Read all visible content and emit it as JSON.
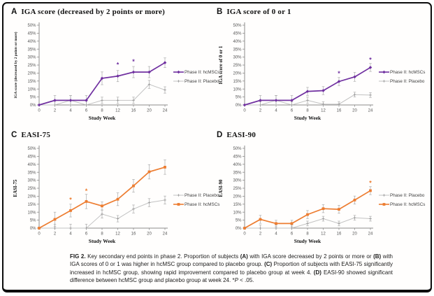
{
  "caption": {
    "fig_label": "FIG 2.",
    "t1": "  Key secondary end points in phase 2. Proportion of subjects ",
    "a": "(A)",
    "t2": " with IGA score decreased by 2 points or more or ",
    "b": "(B)",
    "t3": " with IGA scores of 0 or 1 was higher in hcMSC group compared to placebo group. ",
    "c": "(C)",
    "t4": " Proportion of subjects with EASI-75 significantly increased in hcMSC group, showing rapid improvement compared to placebo group at week 4. ",
    "d": "(D)",
    "t5": " EASI-90 showed significant difference between hcMSC group and placebo group at week 24. *",
    "p": "P",
    "t6": " < .05."
  },
  "chart_data": [
    {
      "type": "line",
      "letter": "A",
      "title": "IGA score (decreased by 2 points or more)",
      "ylabel": "IGA score (decreased by 2 points or more)",
      "xlabel": "Study Week",
      "x": [
        "0",
        "2",
        "4",
        "6",
        "8",
        "12",
        "16",
        "20",
        "24"
      ],
      "ylim": [
        0,
        50
      ],
      "y_step": 5,
      "y_tick_suffix": "%",
      "grid": "off",
      "legend_position": "right",
      "series": [
        {
          "name": "Phase II: hcMSCs",
          "color": "#7030A0",
          "marker": "diamond",
          "line_width": 1.7,
          "values": [
            0,
            2.9,
            2.9,
            2.9,
            16.7,
            18.1,
            20.6,
            20.6,
            26.5
          ],
          "err": [
            0,
            3,
            3,
            3,
            4,
            3.5,
            3.5,
            3.5,
            3
          ]
        },
        {
          "name": "Phase II: Placebo",
          "color": "#C2C2C2",
          "marker": "plus",
          "line_width": 1,
          "values": [
            0,
            0,
            2.9,
            0,
            2.9,
            2.9,
            2.9,
            12.9,
            9.4
          ],
          "err": [
            0,
            2.5,
            3,
            2.5,
            2,
            2,
            2,
            2.5,
            2
          ]
        }
      ],
      "legend_order": [
        0,
        1
      ],
      "asterisks": [
        {
          "week": "12",
          "y": 25
        },
        {
          "week": "16",
          "y": 27
        }
      ]
    },
    {
      "type": "line",
      "letter": "B",
      "title": "IGA score of 0 or 1",
      "ylabel": "IGA score of 0 or 1",
      "xlabel": "Study Week",
      "x": [
        "0",
        "2",
        "4",
        "6",
        "8",
        "12",
        "16",
        "20",
        "24"
      ],
      "ylim": [
        0,
        50
      ],
      "y_step": 5,
      "y_tick_suffix": "%",
      "grid": "off",
      "legend_position": "right",
      "series": [
        {
          "name": "Phase II: hcMSCs",
          "color": "#7030A0",
          "marker": "diamond",
          "line_width": 1.7,
          "values": [
            0,
            2.9,
            2.9,
            2.9,
            8.5,
            9.0,
            14.7,
            17.6,
            23.5
          ],
          "err": [
            0,
            3,
            3,
            3,
            2.5,
            2.5,
            2.5,
            2.8,
            2.5
          ]
        },
        {
          "name": "Phase II: Placebo",
          "color": "#C2C2C2",
          "marker": "plus",
          "line_width": 1,
          "values": [
            0,
            0,
            2.9,
            0,
            2.9,
            0.5,
            0.5,
            6.5,
            6.2
          ],
          "err": [
            0,
            2,
            3,
            2,
            2,
            1.5,
            1.5,
            1.5,
            1.5
          ]
        }
      ],
      "legend_order": [
        0,
        1
      ],
      "asterisks": [
        {
          "week": "16",
          "y": 19.5
        },
        {
          "week": "24",
          "y": 28
        }
      ]
    },
    {
      "type": "line",
      "letter": "C",
      "title": "EASI-75",
      "ylabel": "EASI-75",
      "xlabel": "Study Week",
      "x": [
        "0",
        "2",
        "4",
        "6",
        "8",
        "12",
        "16",
        "20",
        "24"
      ],
      "ylim": [
        0,
        50
      ],
      "y_step": 5,
      "y_tick_suffix": "%",
      "grid": "off",
      "legend_position": "right",
      "series": [
        {
          "name": "Phase II: hcMSCs",
          "color": "#ED7D31",
          "marker": "square",
          "line_width": 1.7,
          "values": [
            0,
            5.5,
            11.0,
            16.7,
            13.9,
            18.1,
            26.5,
            35.3,
            38.2
          ],
          "err": [
            0,
            4.5,
            4,
            4.5,
            2.5,
            4,
            4,
            4.5,
            4.5
          ]
        },
        {
          "name": "Phase II: Placebo",
          "color": "#C2C2C2",
          "marker": "plus",
          "line_width": 1,
          "values": [
            0,
            0,
            0,
            0,
            8.8,
            5.9,
            12.0,
            16.0,
            17.6
          ],
          "err": [
            0,
            2.5,
            2.5,
            2.5,
            2.5,
            2,
            2.5,
            2.5,
            2.5
          ]
        }
      ],
      "legend_order": [
        1,
        0
      ],
      "asterisks": [
        {
          "week": "4",
          "y": 17.5
        },
        {
          "week": "6",
          "y": 23
        }
      ]
    },
    {
      "type": "line",
      "letter": "D",
      "title": "EASI-90",
      "ylabel": "EASI-90",
      "xlabel": "Study Week",
      "x": [
        "0",
        "2",
        "4",
        "6",
        "8",
        "12",
        "16",
        "20",
        "24"
      ],
      "ylim": [
        0,
        50
      ],
      "y_step": 5,
      "y_tick_suffix": "%",
      "grid": "off",
      "legend_position": "right",
      "series": [
        {
          "name": "Phase II: hcMSCs",
          "color": "#ED7D31",
          "marker": "square",
          "line_width": 1.7,
          "values": [
            0,
            5.5,
            2.9,
            2.9,
            8.5,
            12.2,
            11.8,
            17.6,
            23.5
          ],
          "err": [
            0,
            2.5,
            2,
            2,
            2.5,
            2.5,
            2.5,
            2.5,
            2.5
          ]
        },
        {
          "name": "Phase II: Placebo",
          "color": "#C2C2C2",
          "marker": "plus",
          "line_width": 1,
          "values": [
            0,
            0,
            0,
            0,
            2.9,
            5.9,
            2.9,
            6.5,
            5.9
          ],
          "err": [
            0,
            2,
            2,
            2,
            1.5,
            1.5,
            1.5,
            1.5,
            1.5
          ]
        }
      ],
      "legend_order": [
        1,
        0
      ],
      "asterisks": [
        {
          "week": "24",
          "y": 28
        }
      ]
    }
  ]
}
